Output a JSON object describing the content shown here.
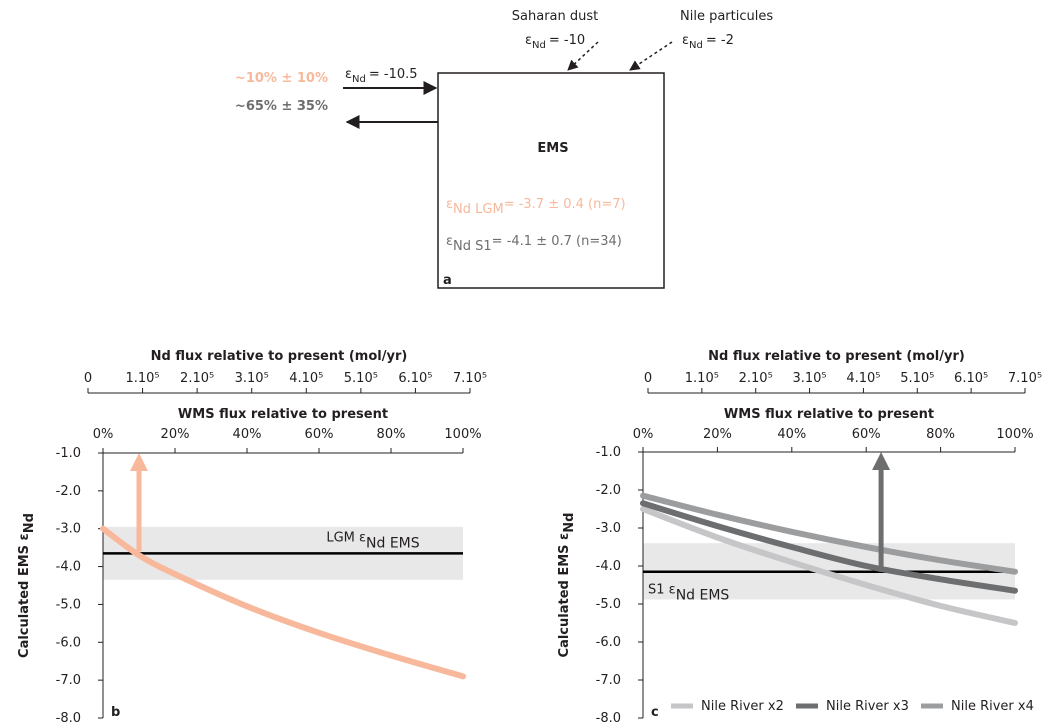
{
  "diagram": {
    "saharan_dust": {
      "label": "Saharan dust",
      "symbol": "ε",
      "subscript": "Nd",
      "value": "= -10"
    },
    "nile_particules": {
      "label": "Nile particules",
      "symbol": "ε",
      "subscript": "Nd",
      "value": "= -2"
    },
    "inflow": {
      "symbol": "ε",
      "subscript": "Nd",
      "value": "= -10.5"
    },
    "fraction_lgm": "~10% ± 10%",
    "fraction_s1": "~65% ± 35%",
    "box_title": "EMS",
    "lgm": {
      "symbol": "ε",
      "subscript": "Nd LGM",
      "value": "= -3.7 ± 0.4 (n=7)"
    },
    "s1": {
      "symbol": "ε",
      "subscript": "Nd S1",
      "value": "= -4.1 ± 0.7 (n=34)"
    },
    "panel_label": "a"
  },
  "chart_data": [
    {
      "type": "line",
      "panel_label": "b",
      "x2_title": "Nd flux relative to present (mol/yr)",
      "title": "WMS flux relative to present",
      "ylabel": "Calculated EMS ε",
      "ylabel_sub": "Nd",
      "x": [
        0,
        10,
        20,
        40,
        60,
        80,
        100
      ],
      "series": [
        {
          "color": "#f7b89b",
          "values": [
            -3.0,
            -3.7,
            -4.2,
            -5.05,
            -5.75,
            -6.35,
            -6.9
          ]
        }
      ],
      "band": {
        "ylim": [
          -4.35,
          -2.95
        ],
        "color": "#e8e8e8"
      },
      "reference_line": {
        "value": -3.65,
        "label": "LGM ε",
        "label_sub": "Nd EMS"
      },
      "arrow": {
        "x": 10,
        "y": [
          -3.6,
          -1.0
        ],
        "color": "#f7b89b"
      },
      "xlim": [
        0,
        100
      ],
      "ylim": [
        -8,
        -1
      ],
      "xticks": [
        {
          "value": 0,
          "label": "0%"
        },
        {
          "value": 20,
          "label": "20%"
        },
        {
          "value": 40,
          "label": "40%"
        },
        {
          "value": 60,
          "label": "60%"
        },
        {
          "value": 80,
          "label": "80%"
        },
        {
          "value": 100,
          "label": "100%"
        }
      ],
      "yticks": [
        {
          "value": -1,
          "label": "-1.0"
        },
        {
          "value": -2,
          "label": "-2.0"
        },
        {
          "value": -3,
          "label": "-3.0"
        },
        {
          "value": -4,
          "label": "-4.0"
        },
        {
          "value": -5,
          "label": "-5.0"
        },
        {
          "value": -6,
          "label": "-6.0"
        },
        {
          "value": -7,
          "label": "-7.0"
        },
        {
          "value": -8,
          "label": "-8.0"
        }
      ],
      "x2lim": [
        0,
        700000
      ],
      "x2ticks": [
        0,
        {
          "value": 100000,
          "label": "1.10⁵"
        },
        {
          "value": 200000,
          "label": "2.10⁵"
        },
        {
          "value": 300000,
          "label": "3.10⁵"
        },
        {
          "value": 400000,
          "label": "4.10⁵"
        },
        {
          "value": 500000,
          "label": "5.10⁵"
        },
        {
          "value": 600000,
          "label": "6.10⁵"
        },
        {
          "value": 700000,
          "label": "7.10⁵"
        }
      ]
    },
    {
      "type": "line",
      "panel_label": "c",
      "x2_title": "Nd flux relative to present (mol/yr)",
      "title": "WMS flux relative to present",
      "ylabel": "Calculated EMS ε",
      "ylabel_sub": "Nd",
      "x": [
        0,
        20,
        40,
        60,
        80,
        100
      ],
      "series": [
        {
          "name": "Nile River x2",
          "color": "#c6c6c8",
          "values": [
            -2.5,
            -3.25,
            -3.9,
            -4.5,
            -5.05,
            -5.5
          ]
        },
        {
          "name": "Nile River x3",
          "color": "#6d6e70",
          "values": [
            -2.35,
            -2.95,
            -3.5,
            -4.0,
            -4.35,
            -4.65
          ]
        },
        {
          "name": "Nile River x4",
          "color": "#9c9d9f",
          "values": [
            -2.15,
            -2.65,
            -3.1,
            -3.5,
            -3.85,
            -4.15
          ]
        }
      ],
      "band": {
        "ylim": [
          -4.88,
          -3.4
        ],
        "color": "#e8e8e8"
      },
      "reference_line": {
        "value": -4.15,
        "label": "S1 ε",
        "label_sub": "Nd EMS"
      },
      "arrow": {
        "x": 64,
        "y": [
          -4.15,
          -1.0
        ],
        "color": "#6d6e70"
      },
      "xlim": [
        0,
        100
      ],
      "ylim": [
        -8,
        -1
      ],
      "xticks": [
        {
          "value": 0,
          "label": "0%"
        },
        {
          "value": 20,
          "label": "20%"
        },
        {
          "value": 40,
          "label": "40%"
        },
        {
          "value": 60,
          "label": "60%"
        },
        {
          "value": 80,
          "label": "80%"
        },
        {
          "value": 100,
          "label": "100%"
        }
      ],
      "yticks": [
        {
          "value": -1,
          "label": "-1.0"
        },
        {
          "value": -2,
          "label": "-2.0"
        },
        {
          "value": -3,
          "label": "-3.0"
        },
        {
          "value": -4,
          "label": "-4.0"
        },
        {
          "value": -5,
          "label": "-5.0"
        },
        {
          "value": -6,
          "label": "-6.0"
        },
        {
          "value": -7,
          "label": "-7.0"
        },
        {
          "value": -8,
          "label": "-8.0"
        }
      ],
      "x2lim": [
        0,
        700000
      ],
      "x2ticks": [
        0,
        {
          "value": 100000,
          "label": "1.10⁵"
        },
        {
          "value": 200000,
          "label": "2.10⁵"
        },
        {
          "value": 300000,
          "label": "3.10⁵"
        },
        {
          "value": 400000,
          "label": "4.10⁵"
        },
        {
          "value": 500000,
          "label": "5.10⁵"
        },
        {
          "value": 600000,
          "label": "6.10⁵"
        },
        {
          "value": 700000,
          "label": "7.10⁵"
        }
      ]
    }
  ]
}
